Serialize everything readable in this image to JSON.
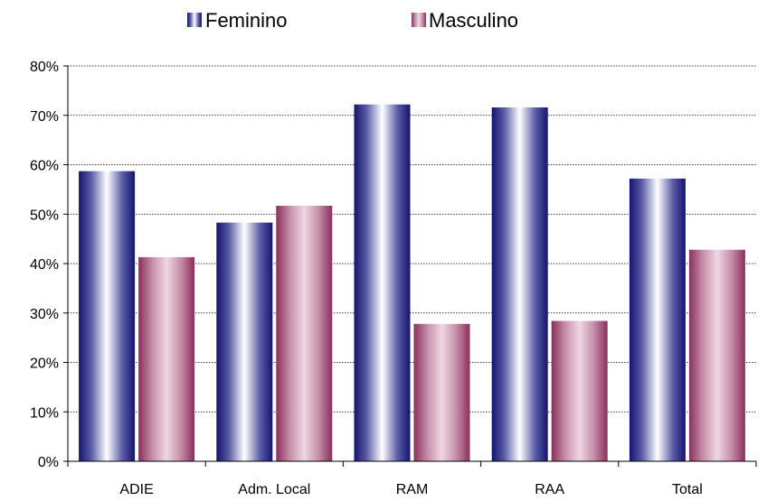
{
  "chart_data": {
    "type": "bar",
    "categories": [
      "ADIE",
      "Adm. Local",
      "RAM",
      "RAA",
      "Total"
    ],
    "series": [
      {
        "name": "Feminino",
        "values": [
          58.7,
          48.3,
          72.2,
          71.6,
          57.2
        ],
        "color": "#1a1a7a"
      },
      {
        "name": "Masculino",
        "values": [
          41.3,
          51.7,
          27.8,
          28.4,
          42.8
        ],
        "color": "#993366"
      }
    ],
    "y_ticks": [
      "0%",
      "10%",
      "20%",
      "30%",
      "40%",
      "50%",
      "60%",
      "70%",
      "80%"
    ],
    "ylim": [
      0,
      80
    ],
    "y_unit": "%",
    "grid": true,
    "legend_position": "top"
  }
}
